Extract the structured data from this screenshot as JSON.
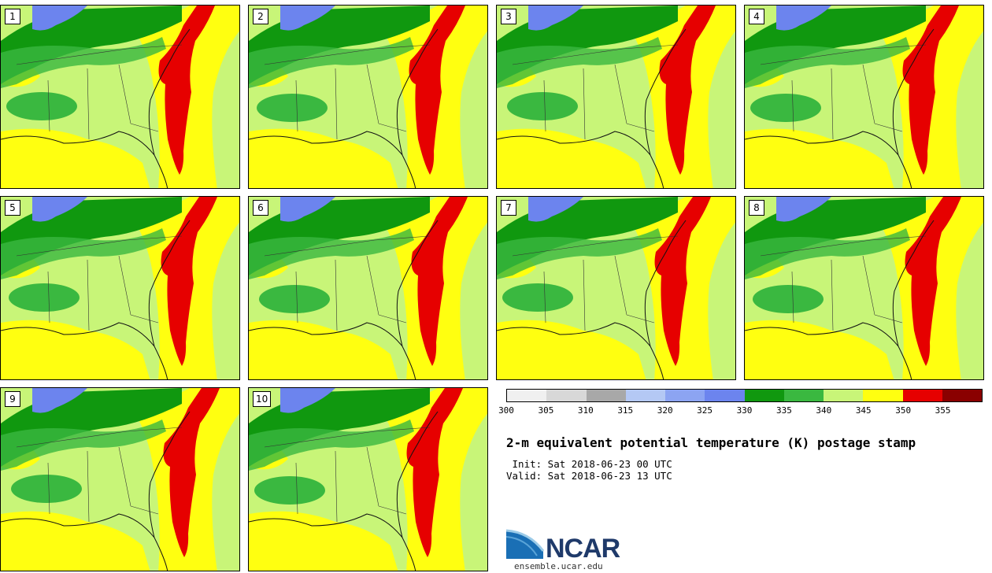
{
  "panels": [
    {
      "label": "1"
    },
    {
      "label": "2"
    },
    {
      "label": "3"
    },
    {
      "label": "4"
    },
    {
      "label": "5"
    },
    {
      "label": "6"
    },
    {
      "label": "7"
    },
    {
      "label": "8"
    },
    {
      "label": "9"
    },
    {
      "label": "10"
    }
  ],
  "colorbar": {
    "colors": [
      "#f0f0f0",
      "#d8d8d8",
      "#a8a8a8",
      "#b4c8f4",
      "#8ca4f2",
      "#6c84ee",
      "#10980f",
      "#3ab840",
      "#c8f578",
      "#ffff10",
      "#e60000",
      "#8a0000"
    ],
    "ticks": [
      "300",
      "305",
      "310",
      "315",
      "320",
      "325",
      "330",
      "335",
      "340",
      "345",
      "350",
      "355"
    ]
  },
  "title": "2-m equivalent potential temperature (K) postage stamp",
  "init": " Init: Sat 2018-06-23 00 UTC",
  "valid": "Valid: Sat 2018-06-23 13 UTC",
  "logo": {
    "text": "NCAR",
    "site": "ensemble.ucar.edu"
  }
}
